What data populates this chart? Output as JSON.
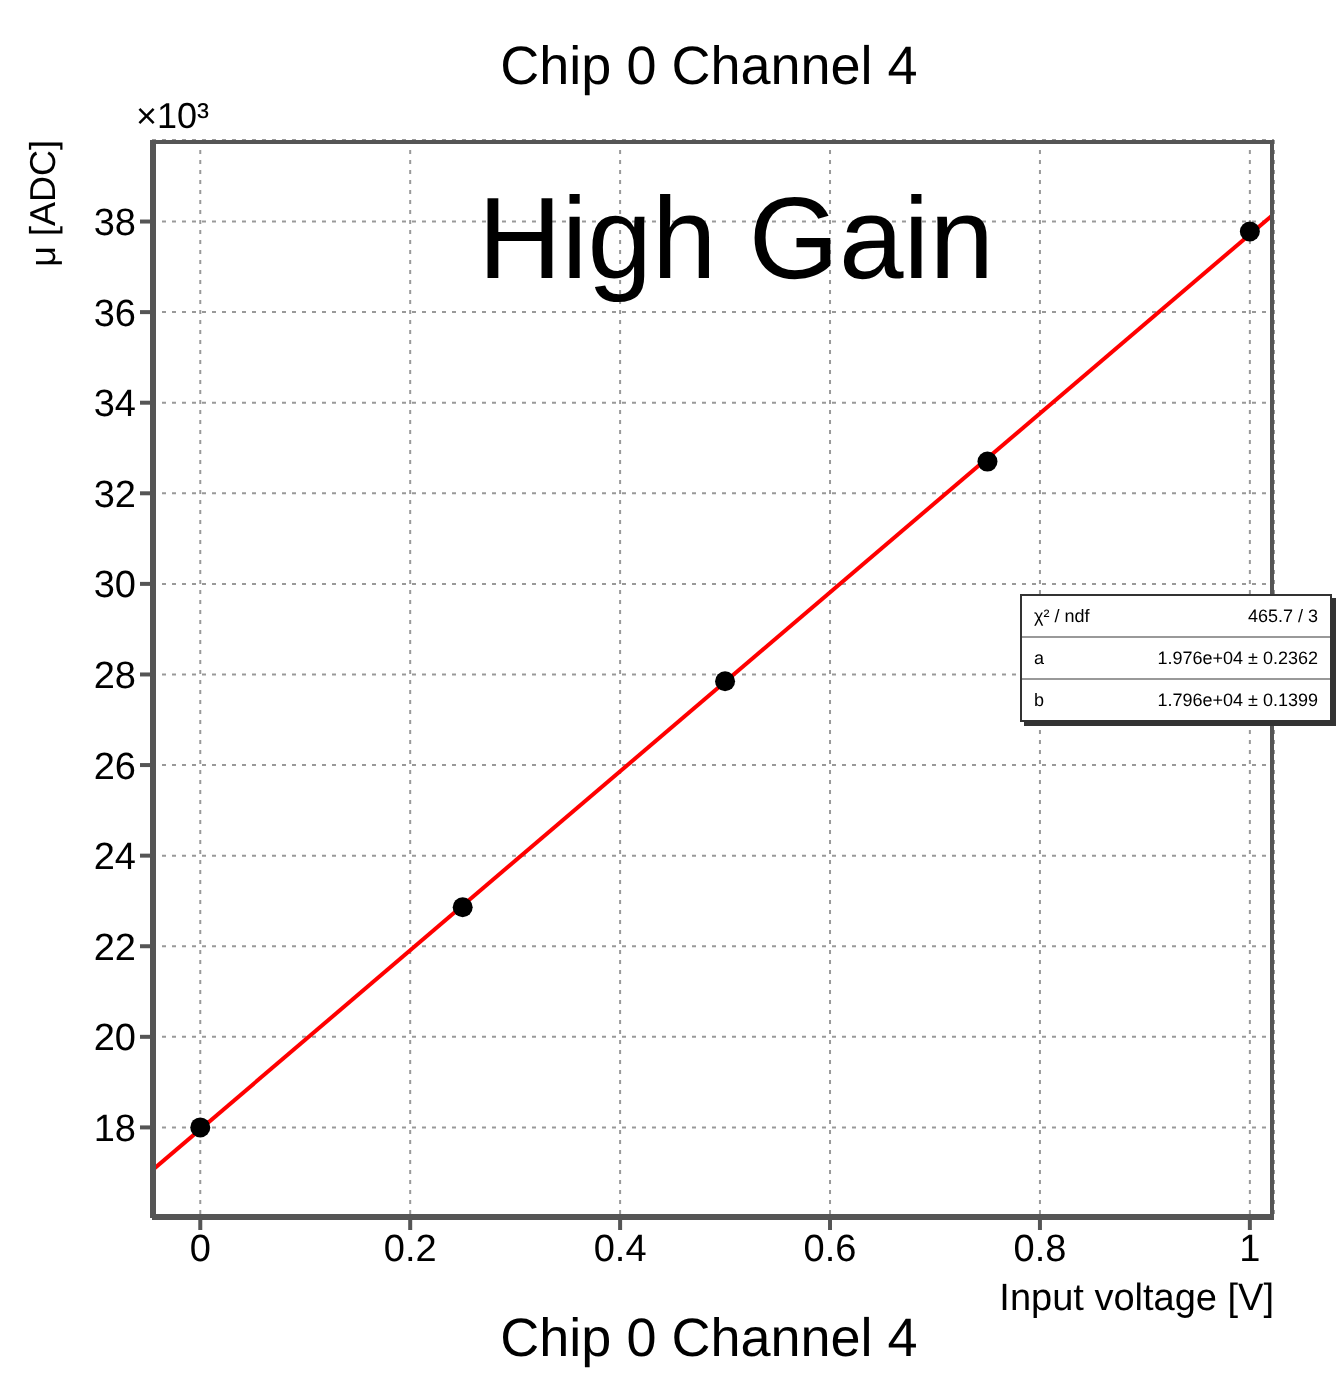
{
  "chart_data": {
    "type": "scatter",
    "title": "Chip 0 Channel 4",
    "xlabel": "Input voltage [V]",
    "ylabel": "μ [ADC]",
    "annotations": [
      "High Gain",
      "×10³",
      "Chip 0 Channel 4",
      "χ² / ndf",
      "465.7 / 3",
      "a",
      "1.976e+04 ± 0.2362",
      "b",
      "1.796e+04 ± 0.1399"
    ],
    "series": [
      {
        "marker": "circle",
        "color": "#000000",
        "x": [
          0,
          0.25,
          0.5,
          0.75,
          1
        ],
        "values": [
          18.0,
          22.86,
          27.85,
          32.7,
          37.78
        ]
      },
      {
        "type": "line",
        "marker": "none",
        "color": "#ff0000",
        "x": [
          -0.046,
          1.023
        ],
        "values": [
          17.05,
          38.17
        ]
      }
    ],
    "xlim": [
      -0.046,
      1.023
    ],
    "xticks": [
      0,
      0.2,
      0.4,
      0.6,
      0.8,
      1
    ],
    "ylim": [
      16.0,
      39.8
    ],
    "yticks": [
      18,
      20,
      22,
      24,
      26,
      28,
      30,
      32,
      34,
      36,
      38
    ],
    "grid": true,
    "line_style": "solid"
  }
}
